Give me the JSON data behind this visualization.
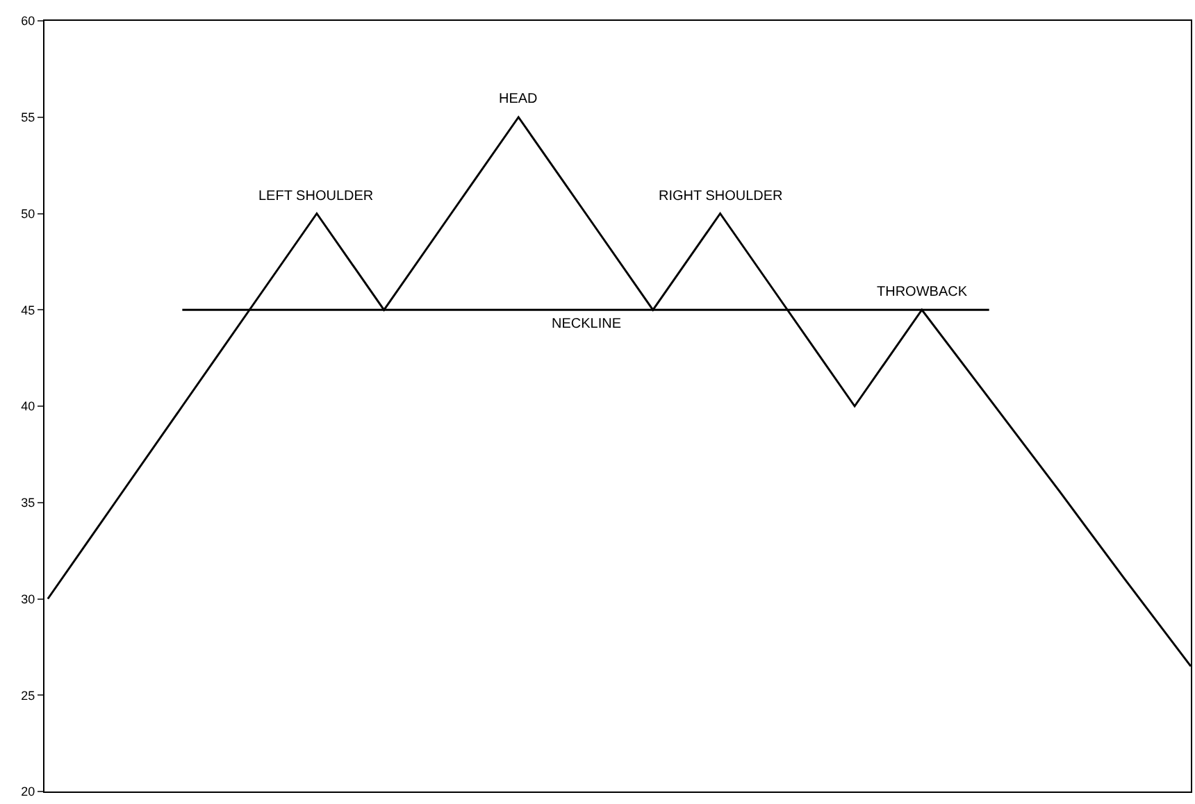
{
  "chart_data": {
    "type": "line",
    "categories": [
      null,
      null,
      null,
      null,
      null,
      null,
      null,
      null,
      null,
      null,
      null,
      null,
      null,
      null,
      null,
      null,
      null,
      null
    ],
    "ylim": [
      20,
      60
    ],
    "yticks": [
      20,
      25,
      30,
      35,
      40,
      45,
      50,
      55,
      60
    ],
    "tick_labels": "y",
    "marker": "none",
    "line_style": "solid",
    "series": [
      {
        "color": "#000000",
        "values": [
          30,
          35,
          40,
          45,
          50,
          45,
          50,
          55,
          50,
          45,
          50,
          45,
          40,
          45,
          40.4,
          35.8,
          31.1,
          26.5
        ]
      },
      {
        "color": "#000000",
        "values": [
          null,
          null,
          45,
          45,
          45,
          45,
          45,
          45,
          45,
          45,
          45,
          45,
          45,
          45,
          45,
          null,
          null,
          null
        ]
      }
    ],
    "annotations": [
      "LEFT SHOULDER",
      "HEAD",
      "RIGHT SHOULDER",
      "THROWBACK",
      "NECKLINE"
    ]
  }
}
